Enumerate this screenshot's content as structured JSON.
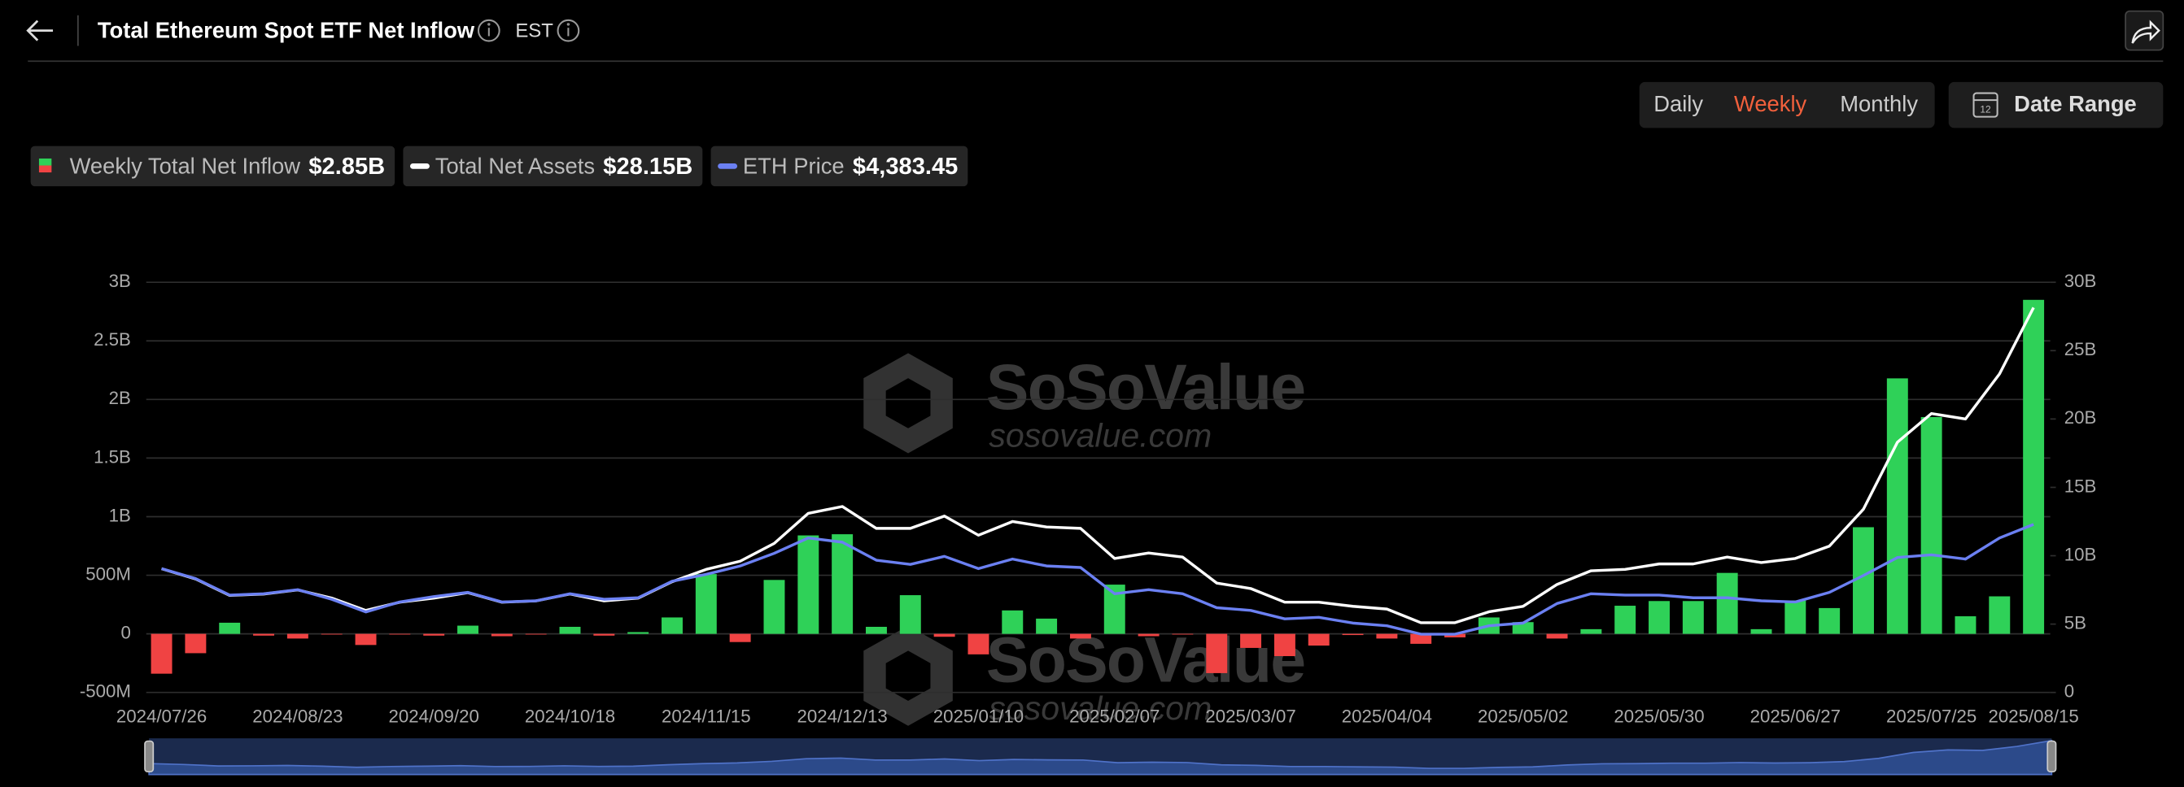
{
  "header": {
    "title": "Total Ethereum Spot ETF Net Inflow",
    "timezone": "EST"
  },
  "controls": {
    "periods": [
      "Daily",
      "Weekly",
      "Monthly"
    ],
    "active": "Weekly",
    "date_range": "Date Range"
  },
  "watermark": {
    "brand": "SoSoValue",
    "url": "sosovalue.com"
  },
  "chart_data": {
    "type": "bar",
    "categories": [
      "2024/07/26",
      null,
      null,
      null,
      "2024/08/23",
      null,
      null,
      null,
      "2024/09/20",
      null,
      null,
      null,
      "2024/10/18",
      null,
      null,
      null,
      "2024/11/15",
      null,
      null,
      null,
      "2024/12/13",
      null,
      null,
      null,
      "2025/01/10",
      null,
      null,
      null,
      "2025/02/07",
      null,
      null,
      null,
      "2025/03/07",
      null,
      null,
      null,
      "2025/04/04",
      null,
      null,
      null,
      "2025/05/02",
      null,
      null,
      null,
      "2025/05/30",
      null,
      null,
      null,
      "2025/06/27",
      null,
      null,
      null,
      "2025/07/25",
      null,
      null,
      "2025/08/15"
    ],
    "series": [
      {
        "name": "Weekly Total Net Inflow",
        "type": "bar",
        "color": "#2fd158",
        "negative_color": "#f04343",
        "latest_label": "$2.85B",
        "values": [
          -340,
          -165,
          95,
          -15,
          -40,
          -5,
          -95,
          -5,
          -15,
          70,
          -20,
          -5,
          60,
          -15,
          15,
          140,
          510,
          -70,
          460,
          840,
          850,
          60,
          330,
          -25,
          -175,
          200,
          130,
          -40,
          420,
          -20,
          -5,
          -335,
          -120,
          -190,
          -100,
          -10,
          -40,
          -85,
          -30,
          140,
          100,
          -40,
          40,
          240,
          280,
          280,
          520,
          40,
          285,
          220,
          910,
          2180,
          1850,
          150,
          320,
          2850
        ]
      },
      {
        "name": "Total Net Assets",
        "type": "line",
        "axis": "y2",
        "color": "#ffffff",
        "latest_label": "$28.15B",
        "values": [
          9050,
          8300,
          7100,
          7200,
          7500,
          6900,
          6000,
          6600,
          6900,
          7300,
          6600,
          6700,
          7200,
          6700,
          6900,
          8100,
          9000,
          9600,
          10900,
          13100,
          13600,
          12000,
          12000,
          12900,
          11500,
          12500,
          12100,
          12000,
          9800,
          10200,
          9900,
          8000,
          7600,
          6600,
          6600,
          6300,
          6100,
          5100,
          5100,
          5900,
          6300,
          7900,
          8900,
          9000,
          9400,
          9400,
          9900,
          9500,
          9800,
          10700,
          13400,
          18300,
          20400,
          20000,
          23300,
          28150
        ]
      },
      {
        "name": "ETH Price",
        "type": "line",
        "axis": "y3",
        "color": "#6b80f2",
        "latest_label": "$4,383.45",
        "values": [
          3230,
          2970,
          2540,
          2575,
          2680,
          2430,
          2100,
          2360,
          2500,
          2610,
          2360,
          2390,
          2575,
          2430,
          2470,
          2900,
          3080,
          3300,
          3630,
          4030,
          3920,
          3450,
          3340,
          3550,
          3230,
          3480,
          3300,
          3260,
          2575,
          2680,
          2575,
          2210,
          2140,
          1920,
          1960,
          1810,
          1740,
          1520,
          1520,
          1740,
          1810,
          2320,
          2575,
          2540,
          2540,
          2470,
          2470,
          2390,
          2360,
          2610,
          3050,
          3520,
          3590,
          3480,
          4030,
          4383.45
        ]
      }
    ],
    "ylim": [
      -500,
      3000
    ],
    "yticks": [
      {
        "value": -500,
        "label": "-500M"
      },
      0,
      {
        "value": 500,
        "label": "500M"
      },
      {
        "value": 1000,
        "label": "1B"
      },
      {
        "value": 1500,
        "label": "1.5B"
      },
      {
        "value": 2000,
        "label": "2B"
      },
      {
        "value": 2500,
        "label": "2.5B"
      },
      {
        "value": 3000,
        "label": "3B"
      }
    ],
    "y2lim": [
      0,
      30000
    ],
    "y2ticks": [
      0,
      {
        "value": 5000,
        "label": "5B"
      },
      {
        "value": 10000,
        "label": "10B"
      },
      {
        "value": 15000,
        "label": "15B"
      },
      {
        "value": 20000,
        "label": "20B"
      },
      {
        "value": 25000,
        "label": "25B"
      },
      {
        "value": 30000,
        "label": "30B"
      }
    ],
    "y3lim": [
      0,
      10700
    ],
    "grid": true
  }
}
